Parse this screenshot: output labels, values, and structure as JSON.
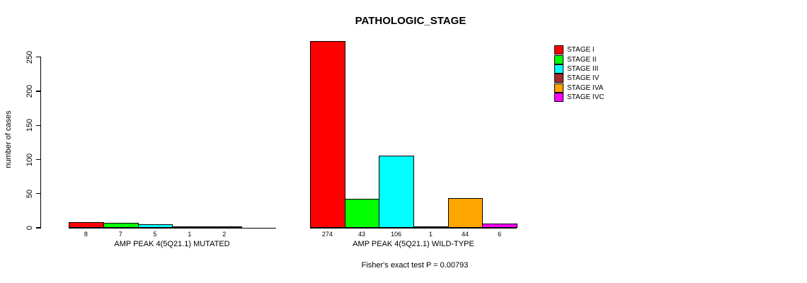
{
  "title": "PATHOLOGIC_STAGE",
  "footer": "Fisher's exact test P = 0.00793",
  "y_axis": {
    "label": "number of cases",
    "ticks": [
      "0",
      "50",
      "100",
      "150",
      "200",
      "250"
    ]
  },
  "legend": {
    "items": [
      {
        "label": "STAGE I",
        "color": "#FF0000"
      },
      {
        "label": "STAGE II",
        "color": "#00FF00"
      },
      {
        "label": "STAGE III",
        "color": "#00FFFF"
      },
      {
        "label": "STAGE IV",
        "color": "#A52A2A"
      },
      {
        "label": "STAGE IVA",
        "color": "#FFA500"
      },
      {
        "label": "STAGE IVC",
        "color": "#FF00FF"
      }
    ]
  },
  "groups": [
    {
      "label": "AMP PEAK 4(5Q21.1) MUTATED",
      "bars": [
        {
          "value": 8,
          "label": "8",
          "color": "#FF0000"
        },
        {
          "value": 7,
          "label": "7",
          "color": "#00FF00"
        },
        {
          "value": 5,
          "label": "5",
          "color": "#00FFFF"
        },
        {
          "value": 1,
          "label": "1",
          "color": "#A52A2A"
        },
        {
          "value": 2,
          "label": "2",
          "color": "#FFA500"
        },
        {
          "value": 0,
          "label": "",
          "color": "#FF00FF"
        }
      ]
    },
    {
      "label": "AMP PEAK 4(5Q21.1) WILD-TYPE",
      "bars": [
        {
          "value": 274,
          "label": "274",
          "color": "#FF0000"
        },
        {
          "value": 43,
          "label": "43",
          "color": "#00FF00"
        },
        {
          "value": 106,
          "label": "106",
          "color": "#00FFFF"
        },
        {
          "value": 1,
          "label": "1",
          "color": "#A52A2A"
        },
        {
          "value": 44,
          "label": "44",
          "color": "#FFA500"
        },
        {
          "value": 6,
          "label": "6",
          "color": "#FF00FF"
        }
      ]
    }
  ],
  "chart_data": {
    "type": "bar",
    "title": "PATHOLOGIC_STAGE",
    "xlabel": "",
    "ylabel": "number of cases",
    "ylim": [
      0,
      280
    ],
    "yticks": [
      0,
      50,
      100,
      150,
      200,
      250
    ],
    "grid": false,
    "legend_position": "right",
    "categories": [
      "AMP PEAK 4(5Q21.1) MUTATED",
      "AMP PEAK 4(5Q21.1) WILD-TYPE"
    ],
    "series": [
      {
        "name": "STAGE I",
        "color": "#FF0000",
        "values": [
          8,
          274
        ]
      },
      {
        "name": "STAGE II",
        "color": "#00FF00",
        "values": [
          7,
          43
        ]
      },
      {
        "name": "STAGE III",
        "color": "#00FFFF",
        "values": [
          5,
          106
        ]
      },
      {
        "name": "STAGE IV",
        "color": "#A52A2A",
        "values": [
          1,
          1
        ]
      },
      {
        "name": "STAGE IVA",
        "color": "#FFA500",
        "values": [
          2,
          44
        ]
      },
      {
        "name": "STAGE IVC",
        "color": "#FF00FF",
        "values": [
          0,
          6
        ]
      }
    ],
    "annotation": "Fisher's exact test P = 0.00793"
  }
}
